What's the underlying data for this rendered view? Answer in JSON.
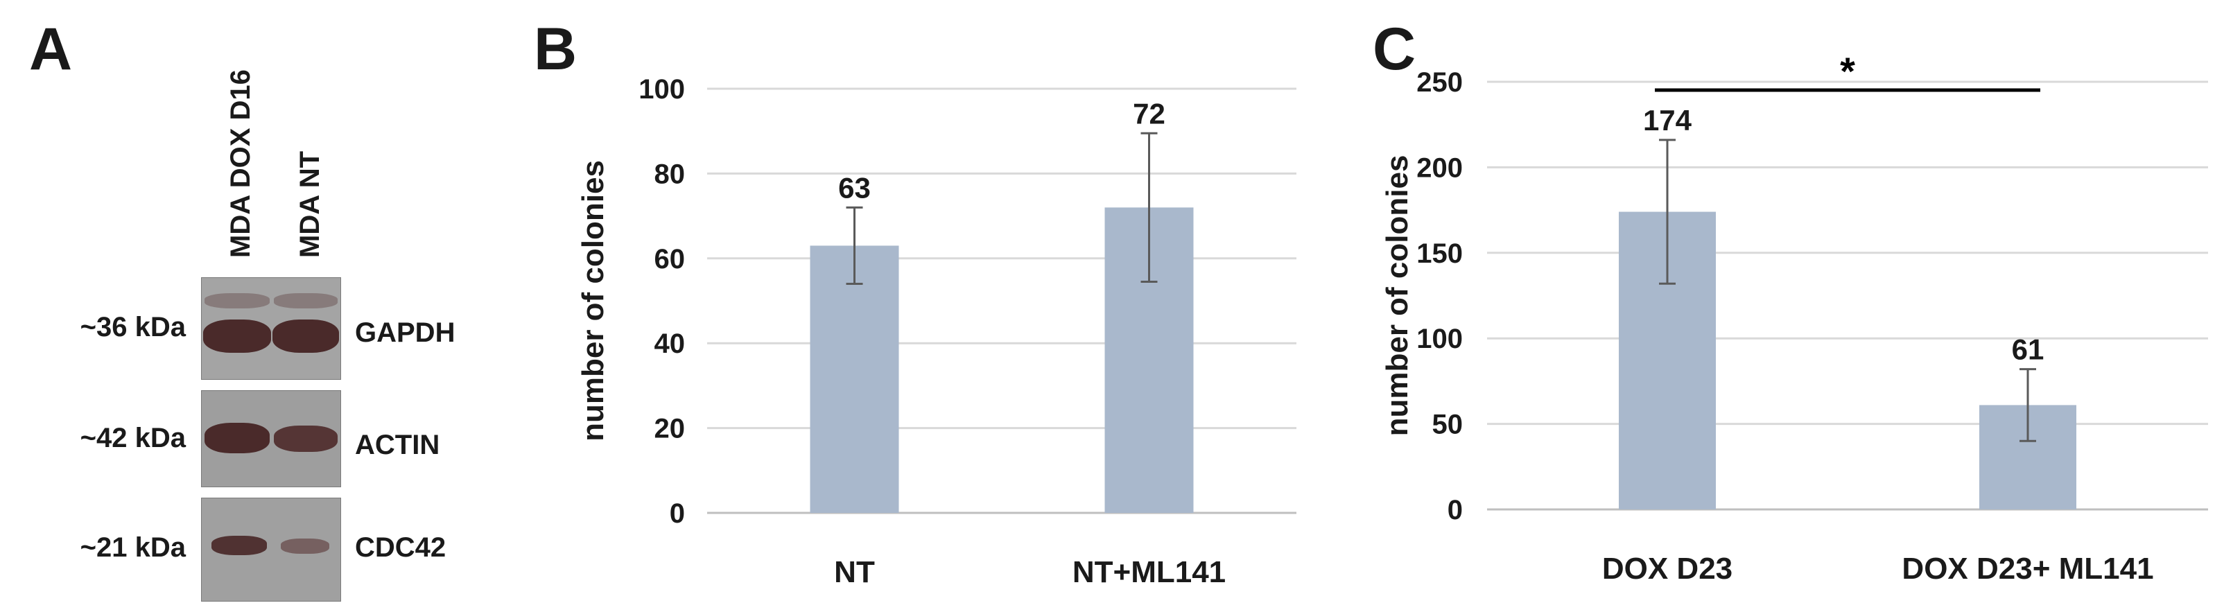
{
  "colors": {
    "bar": "#a9b8cc",
    "error": "#5a5a5a",
    "grid": "#d9d9d9",
    "axis": "#bfbfbf",
    "text": "#1a1a1a"
  },
  "panel_a": {
    "label": "A",
    "lanes": [
      "MDA DOX D16",
      "MDA NT"
    ],
    "blots": [
      {
        "size": "~36 kDa",
        "protein": "GAPDH"
      },
      {
        "size": "~42 kDa",
        "protein": "ACTIN"
      },
      {
        "size": "~21 kDa",
        "protein": "CDC42"
      }
    ]
  },
  "chart_data": [
    {
      "panel": "B",
      "type": "bar",
      "categories": [
        "NT",
        "NT+ML141"
      ],
      "values": [
        63,
        72
      ],
      "errors": [
        9,
        17.5
      ],
      "data_labels": [
        "63",
        "72"
      ],
      "ylabel": "number of colonies",
      "ylim": [
        0,
        100
      ],
      "yticks": [
        0,
        20,
        40,
        60,
        80,
        100
      ],
      "grid": true
    },
    {
      "panel": "C",
      "type": "bar",
      "categories": [
        "DOX D23",
        "DOX D23+ ML141"
      ],
      "values": [
        174,
        61
      ],
      "errors": [
        42,
        21
      ],
      "data_labels": [
        "174",
        "61"
      ],
      "ylabel": "number of colonies",
      "ylim": [
        0,
        250
      ],
      "yticks": [
        0,
        50,
        100,
        150,
        200,
        250
      ],
      "grid": true,
      "significance": {
        "between": [
          0,
          1
        ],
        "label": "*"
      }
    }
  ]
}
